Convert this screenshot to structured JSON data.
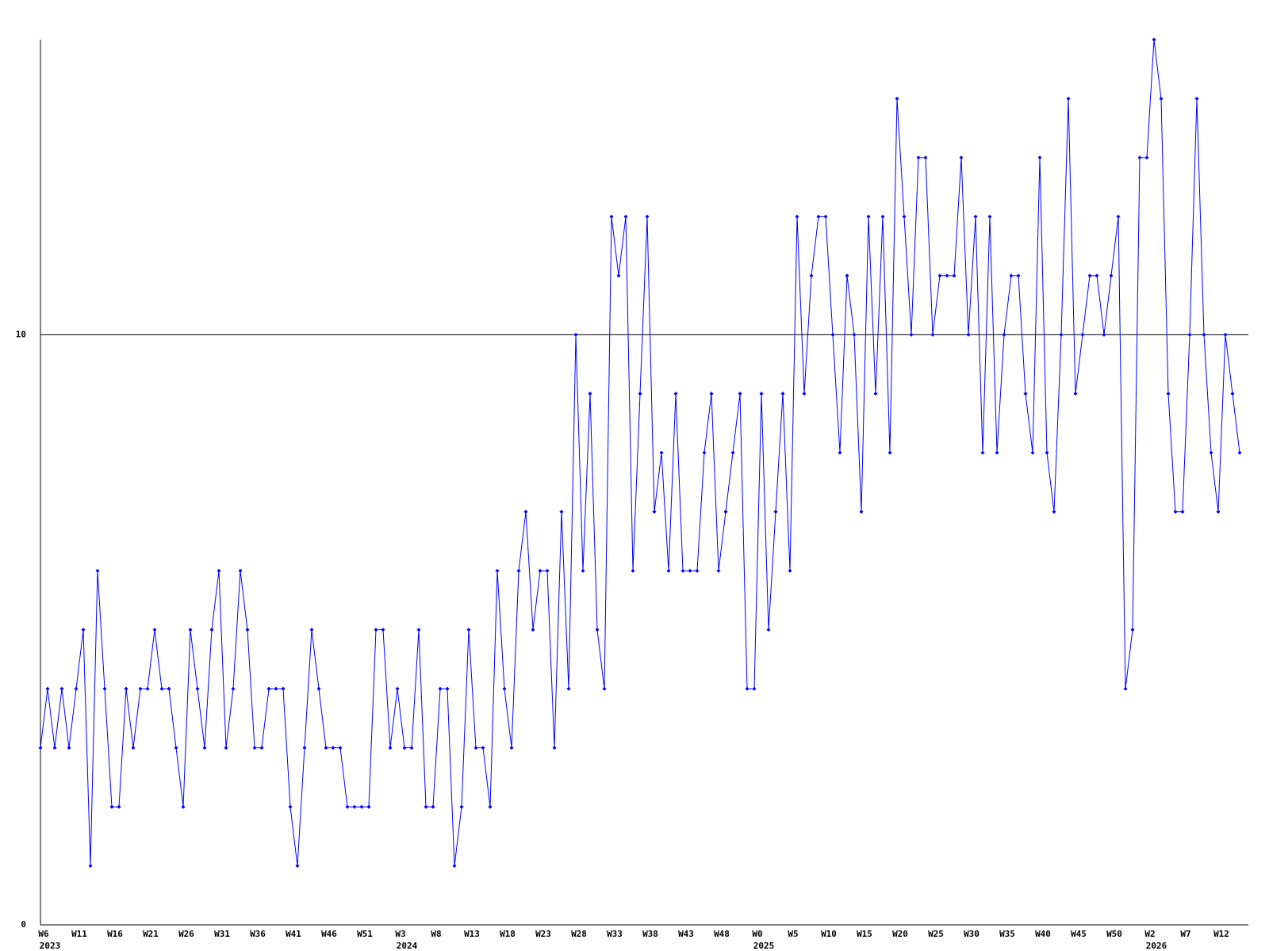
{
  "chart_data": {
    "type": "line",
    "categories": [
      "W6",
      null,
      null,
      null,
      null,
      "W11",
      null,
      null,
      null,
      null,
      "W16",
      null,
      null,
      null,
      null,
      "W21",
      null,
      null,
      null,
      null,
      "W26",
      null,
      null,
      null,
      null,
      "W31",
      null,
      null,
      null,
      null,
      "W36",
      null,
      null,
      null,
      null,
      "W41",
      null,
      null,
      null,
      null,
      "W46",
      null,
      null,
      null,
      null,
      "W51",
      null,
      null,
      null,
      null,
      "W3",
      null,
      null,
      null,
      null,
      "W8",
      null,
      null,
      null,
      null,
      "W13",
      null,
      null,
      null,
      null,
      "W18",
      null,
      null,
      null,
      null,
      "W23",
      null,
      null,
      null,
      null,
      "W28",
      null,
      null,
      null,
      null,
      "W33",
      null,
      null,
      null,
      null,
      "W38",
      null,
      null,
      null,
      null,
      "W43",
      null,
      null,
      null,
      null,
      "W48",
      null,
      null,
      null,
      null,
      "W0",
      null,
      null,
      null,
      null,
      "W5",
      null,
      null,
      null,
      null,
      "W10",
      null,
      null,
      null,
      null,
      "W15",
      null,
      null,
      null,
      null,
      "W20",
      null,
      null,
      null,
      null,
      "W25",
      null,
      null,
      null,
      null,
      "W30",
      null,
      null,
      null,
      null,
      "W35",
      null,
      null,
      null,
      null,
      "W40",
      null,
      null,
      null,
      null,
      "W45",
      null,
      null,
      null,
      null,
      "W50",
      null,
      null,
      null,
      null,
      "W2",
      null,
      null,
      null,
      null,
      "W7",
      null,
      null,
      null,
      null,
      "W12",
      null,
      null,
      null
    ],
    "category_years": [
      "2023",
      null,
      null,
      null,
      null,
      null,
      null,
      null,
      null,
      null,
      null,
      null,
      null,
      null,
      null,
      null,
      null,
      null,
      null,
      null,
      null,
      null,
      null,
      null,
      null,
      null,
      null,
      null,
      null,
      null,
      null,
      null,
      null,
      null,
      null,
      null,
      null,
      null,
      null,
      null,
      null,
      null,
      null,
      null,
      null,
      null,
      null,
      null,
      null,
      null,
      "2024",
      null,
      null,
      null,
      null,
      null,
      null,
      null,
      null,
      null,
      null,
      null,
      null,
      null,
      null,
      null,
      null,
      null,
      null,
      null,
      null,
      null,
      null,
      null,
      null,
      null,
      null,
      null,
      null,
      null,
      null,
      null,
      null,
      null,
      null,
      null,
      null,
      null,
      null,
      null,
      null,
      null,
      null,
      null,
      null,
      null,
      null,
      null,
      null,
      null,
      "2025",
      null,
      null,
      null,
      null,
      null,
      null,
      null,
      null,
      null,
      null,
      null,
      null,
      null,
      null,
      null,
      null,
      null,
      null,
      null,
      null,
      null,
      null,
      null,
      null,
      null,
      null,
      null,
      null,
      null,
      null,
      null,
      null,
      null,
      null,
      null,
      null,
      null,
      null,
      null,
      null,
      null,
      null,
      null,
      null,
      null,
      null,
      null,
      null,
      null,
      null,
      null,
      null,
      null,
      null,
      "2026",
      null,
      null,
      null,
      null,
      null,
      null,
      null,
      null,
      null,
      null,
      null,
      null,
      null
    ],
    "values": [
      3,
      4,
      3,
      4,
      3,
      4,
      5,
      1,
      6,
      4,
      2,
      2,
      4,
      3,
      4,
      4,
      5,
      4,
      4,
      3,
      2,
      5,
      4,
      3,
      5,
      6,
      3,
      4,
      6,
      5,
      3,
      3,
      4,
      4,
      4,
      2,
      1,
      3,
      5,
      4,
      3,
      3,
      3,
      2,
      2,
      2,
      2,
      5,
      5,
      3,
      4,
      3,
      3,
      5,
      2,
      2,
      4,
      4,
      1,
      2,
      5,
      3,
      3,
      2,
      6,
      4,
      3,
      6,
      7,
      5,
      6,
      6,
      3,
      7,
      4,
      10,
      6,
      9,
      5,
      4,
      12,
      11,
      12,
      6,
      9,
      12,
      7,
      8,
      6,
      9,
      6,
      6,
      6,
      8,
      9,
      6,
      7,
      8,
      9,
      4,
      4,
      9,
      5,
      7,
      9,
      6,
      12,
      9,
      11,
      12,
      12,
      10,
      8,
      11,
      10,
      7,
      12,
      9,
      12,
      8,
      14,
      12,
      10,
      13,
      13,
      10,
      11,
      11,
      11,
      13,
      10,
      12,
      8,
      12,
      8,
      10,
      11,
      11,
      9,
      8,
      13,
      8,
      7,
      10,
      14,
      9,
      10,
      11,
      11,
      10,
      11,
      12,
      4,
      5,
      13,
      13,
      15,
      14,
      9,
      7,
      7,
      10,
      14,
      10,
      8,
      7,
      10,
      9,
      8
    ],
    "color": "#0000ff",
    "ylim": [
      0,
      15
    ],
    "yticks": [
      0,
      10
    ],
    "grid": true
  }
}
